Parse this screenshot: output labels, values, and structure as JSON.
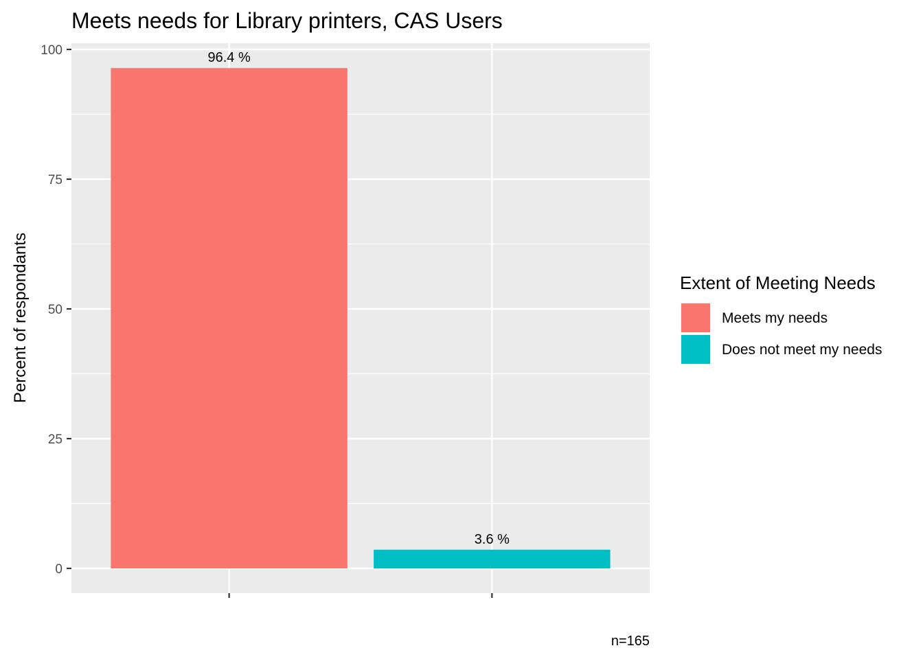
{
  "chart_data": {
    "type": "bar",
    "title": "Meets needs for Library printers, CAS Users",
    "xlabel": "",
    "ylabel": "Percent of respondants",
    "ylim": [
      0,
      100
    ],
    "yticks": [
      0,
      25,
      50,
      75,
      100
    ],
    "categories": [
      "Meets my needs",
      "Does not meet my needs"
    ],
    "values": [
      96.4,
      3.6
    ],
    "data_labels": [
      "96.4 %",
      "3.6 %"
    ],
    "colors": [
      "#F8766D",
      "#00BFC4"
    ],
    "grid": true,
    "legend": {
      "title": "Extent of Meeting Needs",
      "position": "right",
      "entries": [
        "Meets my needs",
        "Does not meet my needs"
      ]
    },
    "caption": "n=165"
  }
}
